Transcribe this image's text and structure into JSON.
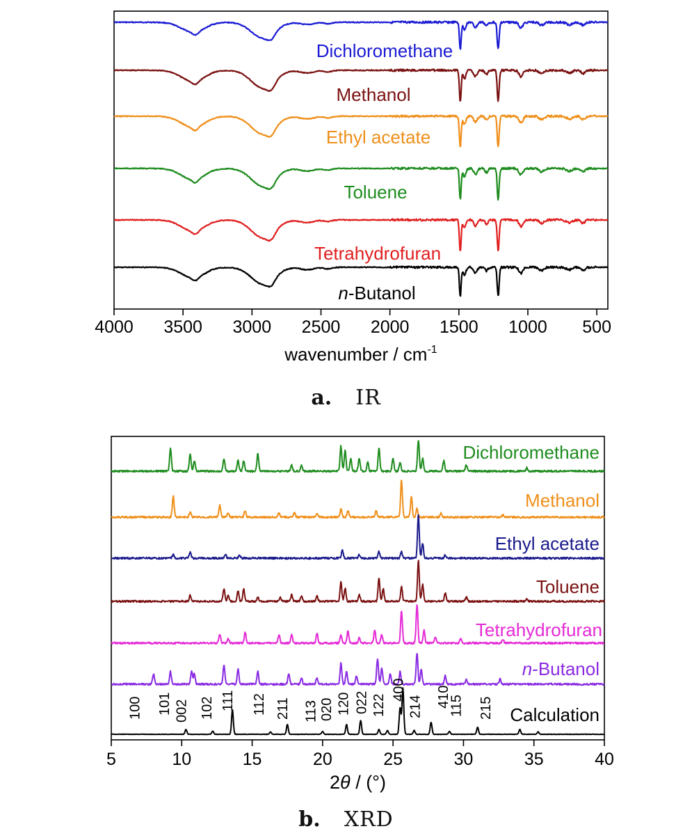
{
  "chart_data": [
    {
      "type": "line",
      "panel": "a",
      "xlabel": "wavenumber / cm",
      "xlabel_sup": "-1",
      "xlim": [
        4000,
        420
      ],
      "x_reversed": true,
      "xticks": [
        4000,
        3500,
        3000,
        2500,
        2000,
        1500,
        1000,
        500
      ],
      "ylabel": "",
      "grid": false,
      "legend": "inline labels",
      "peaks_cm-1": [
        3460,
        3410,
        2920,
        2860,
        2450,
        1490,
        1215
      ],
      "series": [
        {
          "name": "Dichloromethane",
          "color": "#1a1ad4",
          "baseline": 0.96,
          "depth": 0.75
        },
        {
          "name": "Methanol",
          "color": "#7a1010",
          "baseline": 0.96,
          "depth": 0.85
        },
        {
          "name": "Ethyl acetate",
          "color": "#ef8f1a",
          "baseline": 0.96,
          "depth": 0.85
        },
        {
          "name": "Toluene",
          "color": "#1e8c1e",
          "baseline": 0.96,
          "depth": 0.85
        },
        {
          "name": "Tetrahydrofuran",
          "color": "#e01e1e",
          "baseline": 0.96,
          "depth": 0.85
        },
        {
          "name": "n-Butanol",
          "name_italic_prefix": "n",
          "name_rest": "-Butanol",
          "color": "#000000",
          "baseline": 0.96,
          "depth": 0.8
        }
      ]
    },
    {
      "type": "line",
      "panel": "b",
      "xlabel": "2θ / (°)",
      "xlim": [
        5,
        40
      ],
      "xticks": [
        5,
        10,
        15,
        20,
        25,
        30,
        35,
        40
      ],
      "ylabel": "",
      "grid": false,
      "legend": "inline labels",
      "series": [
        {
          "name": "Dichloromethane",
          "color": "#1e8c1e",
          "peaks": [
            [
              9.2,
              0.55
            ],
            [
              10.6,
              0.4
            ],
            [
              10.9,
              0.25
            ],
            [
              13.0,
              0.3
            ],
            [
              14.0,
              0.25
            ],
            [
              14.4,
              0.25
            ],
            [
              15.4,
              0.42
            ],
            [
              17.8,
              0.15
            ],
            [
              18.5,
              0.15
            ],
            [
              21.3,
              0.6
            ],
            [
              21.6,
              0.5
            ],
            [
              22.0,
              0.3
            ],
            [
              22.6,
              0.3
            ],
            [
              23.2,
              0.22
            ],
            [
              24.0,
              0.55
            ],
            [
              25.0,
              0.3
            ],
            [
              25.5,
              0.22
            ],
            [
              26.8,
              0.75
            ],
            [
              27.1,
              0.3
            ],
            [
              28.6,
              0.25
            ],
            [
              30.2,
              0.15
            ],
            [
              34.5,
              0.08
            ]
          ]
        },
        {
          "name": "Methanol",
          "color": "#ef8f1a",
          "peaks": [
            [
              9.4,
              0.5
            ],
            [
              10.6,
              0.12
            ],
            [
              12.7,
              0.28
            ],
            [
              13.3,
              0.1
            ],
            [
              14.5,
              0.15
            ],
            [
              16.9,
              0.1
            ],
            [
              18.0,
              0.1
            ],
            [
              19.6,
              0.1
            ],
            [
              21.3,
              0.2
            ],
            [
              21.8,
              0.15
            ],
            [
              23.8,
              0.15
            ],
            [
              25.6,
              0.9
            ],
            [
              26.3,
              0.5
            ],
            [
              26.7,
              0.2
            ],
            [
              28.4,
              0.1
            ],
            [
              32.8,
              0.06
            ]
          ]
        },
        {
          "name": "Ethyl acetate",
          "color": "#1a1a8c",
          "peaks": [
            [
              9.4,
              0.08
            ],
            [
              10.6,
              0.15
            ],
            [
              13.1,
              0.1
            ],
            [
              14.1,
              0.08
            ],
            [
              21.4,
              0.2
            ],
            [
              22.6,
              0.08
            ],
            [
              24.0,
              0.15
            ],
            [
              25.6,
              0.15
            ],
            [
              26.8,
              1.0
            ],
            [
              27.1,
              0.35
            ],
            [
              28.7,
              0.08
            ]
          ]
        },
        {
          "name": "Toluene",
          "color": "#7a1010",
          "peaks": [
            [
              10.6,
              0.15
            ],
            [
              13.0,
              0.3
            ],
            [
              13.3,
              0.15
            ],
            [
              14.0,
              0.25
            ],
            [
              14.4,
              0.3
            ],
            [
              15.4,
              0.1
            ],
            [
              17.0,
              0.1
            ],
            [
              17.8,
              0.15
            ],
            [
              18.5,
              0.12
            ],
            [
              19.6,
              0.12
            ],
            [
              21.3,
              0.45
            ],
            [
              21.6,
              0.3
            ],
            [
              22.6,
              0.15
            ],
            [
              24.0,
              0.55
            ],
            [
              24.3,
              0.3
            ],
            [
              25.6,
              0.35
            ],
            [
              26.8,
              0.95
            ],
            [
              27.1,
              0.4
            ],
            [
              28.7,
              0.2
            ],
            [
              30.2,
              0.1
            ],
            [
              34.5,
              0.06
            ]
          ]
        },
        {
          "name": "Tetrahydrofuran",
          "color": "#e52ad6",
          "peaks": [
            [
              12.7,
              0.2
            ],
            [
              13.3,
              0.1
            ],
            [
              14.5,
              0.25
            ],
            [
              16.9,
              0.2
            ],
            [
              17.8,
              0.2
            ],
            [
              19.6,
              0.22
            ],
            [
              21.3,
              0.2
            ],
            [
              21.8,
              0.3
            ],
            [
              22.6,
              0.12
            ],
            [
              23.7,
              0.3
            ],
            [
              24.2,
              0.2
            ],
            [
              25.6,
              0.75
            ],
            [
              26.7,
              0.9
            ],
            [
              27.2,
              0.3
            ],
            [
              28.0,
              0.15
            ],
            [
              29.8,
              0.1
            ],
            [
              32.8,
              0.08
            ]
          ]
        },
        {
          "name": "n-Butanol",
          "name_italic_prefix": "n",
          "name_rest": "-Butanol",
          "color": "#8a2be2",
          "peaks": [
            [
              8.0,
              0.25
            ],
            [
              9.2,
              0.3
            ],
            [
              10.7,
              0.3
            ],
            [
              10.9,
              0.25
            ],
            [
              13.0,
              0.45
            ],
            [
              14.0,
              0.35
            ],
            [
              15.4,
              0.3
            ],
            [
              17.6,
              0.25
            ],
            [
              18.5,
              0.15
            ],
            [
              19.6,
              0.15
            ],
            [
              21.3,
              0.5
            ],
            [
              21.7,
              0.3
            ],
            [
              22.4,
              0.2
            ],
            [
              23.9,
              0.6
            ],
            [
              24.2,
              0.4
            ],
            [
              24.8,
              0.25
            ],
            [
              25.5,
              0.3
            ],
            [
              26.7,
              0.75
            ],
            [
              27.0,
              0.35
            ],
            [
              28.7,
              0.2
            ],
            [
              30.2,
              0.12
            ],
            [
              32.6,
              0.12
            ]
          ]
        },
        {
          "name": "Calculation",
          "color": "#000000",
          "peaks": [
            [
              10.3,
              0.1
            ],
            [
              12.2,
              0.07
            ],
            [
              13.6,
              0.5
            ],
            [
              16.3,
              0.05
            ],
            [
              17.5,
              0.2
            ],
            [
              20.0,
              0.06
            ],
            [
              21.7,
              0.2
            ],
            [
              22.7,
              0.28
            ],
            [
              24.0,
              0.1
            ],
            [
              24.6,
              0.08
            ],
            [
              25.5,
              0.55
            ],
            [
              25.7,
              0.95
            ],
            [
              26.5,
              0.08
            ],
            [
              27.7,
              0.25
            ],
            [
              29.0,
              0.06
            ],
            [
              31.0,
              0.15
            ],
            [
              34.0,
              0.1
            ],
            [
              35.3,
              0.05
            ]
          ]
        }
      ],
      "annotations": [
        {
          "text": "100",
          "x": 7.0
        },
        {
          "text": "101",
          "x": 9.1
        },
        {
          "text": "002",
          "x": 10.3
        },
        {
          "text": "102",
          "x": 12.1
        },
        {
          "text": "111",
          "x": 13.6
        },
        {
          "text": "112",
          "x": 15.8
        },
        {
          "text": "211",
          "x": 17.5
        },
        {
          "text": "113",
          "x": 19.5
        },
        {
          "text": "020",
          "x": 20.6
        },
        {
          "text": "120",
          "x": 21.8
        },
        {
          "text": "022",
          "x": 23.1
        },
        {
          "text": "122",
          "x": 24.3
        },
        {
          "text": "400",
          "x": 25.7
        },
        {
          "text": "214",
          "x": 26.9
        },
        {
          "text": "410",
          "x": 28.9
        },
        {
          "text": "115",
          "x": 29.8
        },
        {
          "text": "215",
          "x": 31.9
        }
      ]
    }
  ],
  "captions": {
    "a": {
      "label": "a.",
      "text": "IR"
    },
    "b": {
      "label": "b.",
      "text": "XRD"
    }
  }
}
